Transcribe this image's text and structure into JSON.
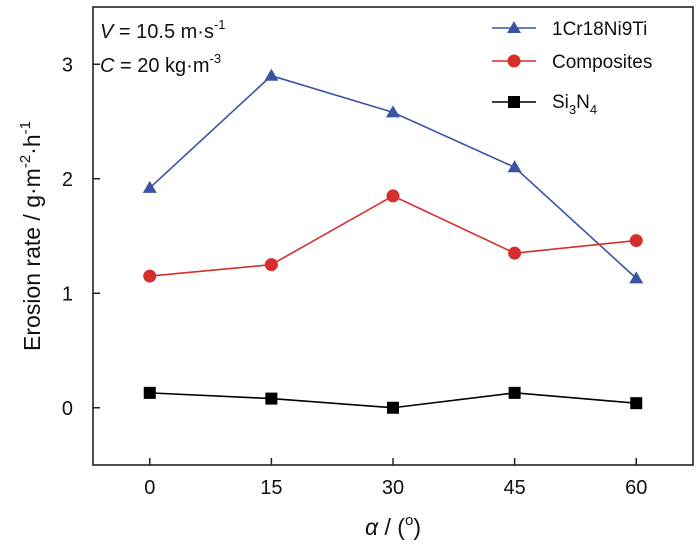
{
  "chart_data": {
    "type": "line",
    "x": [
      0,
      15,
      30,
      45,
      60
    ],
    "x_ticks": [
      "0",
      "15",
      "30",
      "45",
      "60"
    ],
    "y_ticks": [
      "0",
      "1",
      "2",
      "3"
    ],
    "xlim": [
      -7,
      67
    ],
    "ylim": [
      -0.5,
      3.5
    ],
    "grid": false,
    "legend_position": "top-right",
    "xlabel": {
      "symbol": "α",
      "rest": " / (",
      "deg": "o",
      "close": ")"
    },
    "ylabel": {
      "main": "Erosion rate / g·m",
      "sup1": "-2",
      "mid": "·h",
      "sup2": "-1"
    },
    "conditions": [
      {
        "symbol": "V",
        "text": " = 10.5 m·s",
        "sup": "-1"
      },
      {
        "symbol": "C",
        "text": " = 20 kg·m",
        "sup": "-3"
      }
    ],
    "series": [
      {
        "name": "1Cr18Ni9Ti",
        "marker": "triangle",
        "color": "#3a53a4",
        "values": [
          1.92,
          2.9,
          2.58,
          2.1,
          1.13
        ]
      },
      {
        "name": "Composites",
        "marker": "circle",
        "color": "#d62d2d",
        "values": [
          1.15,
          1.25,
          1.85,
          1.35,
          1.46
        ]
      },
      {
        "name": "Si3N4",
        "name_parts": {
          "a": "Si",
          "s1": "3",
          "b": "N",
          "s2": "4"
        },
        "marker": "square",
        "color": "#000000",
        "values": [
          0.13,
          0.08,
          0.0,
          0.13,
          0.04
        ]
      }
    ]
  }
}
